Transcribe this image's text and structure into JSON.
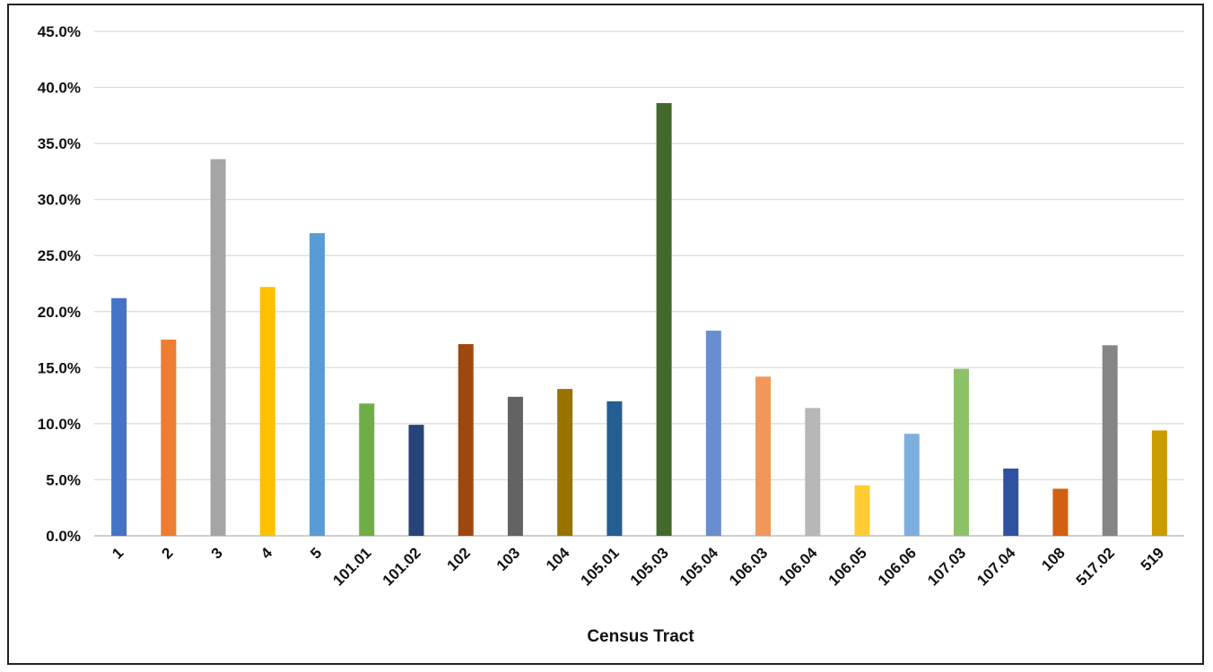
{
  "chart_data": {
    "type": "bar",
    "title": "",
    "xlabel": "Census Tract",
    "ylabel": "",
    "ylim": [
      0,
      45
    ],
    "yticks": [
      "0.0%",
      "5.0%",
      "10.0%",
      "15.0%",
      "20.0%",
      "25.0%",
      "30.0%",
      "35.0%",
      "40.0%",
      "45.0%"
    ],
    "grid": true,
    "categories": [
      "1",
      "2",
      "3",
      "4",
      "5",
      "101.01",
      "101.02",
      "102",
      "103",
      "104",
      "105.01",
      "105.03",
      "105.04",
      "106.03",
      "106.04",
      "106.05",
      "106.06",
      "107.03",
      "107.04",
      "108",
      "517.02",
      "519"
    ],
    "values": [
      21.2,
      17.5,
      33.6,
      22.2,
      27.0,
      11.8,
      9.9,
      17.1,
      12.4,
      13.1,
      12.0,
      38.6,
      18.3,
      14.2,
      11.4,
      4.5,
      9.1,
      14.9,
      6.0,
      4.2,
      17.0,
      9.4
    ],
    "colors": [
      "#4472C4",
      "#ED7D31",
      "#A5A5A5",
      "#FFC000",
      "#5B9BD5",
      "#70AD47",
      "#264478",
      "#9E480E",
      "#636363",
      "#997300",
      "#255E91",
      "#43682B",
      "#698ED0",
      "#F1975A",
      "#B7B7B7",
      "#FFCD33",
      "#7CAFDD",
      "#8CC168",
      "#2F52A0",
      "#D26012",
      "#858585",
      "#C99C00"
    ]
  }
}
